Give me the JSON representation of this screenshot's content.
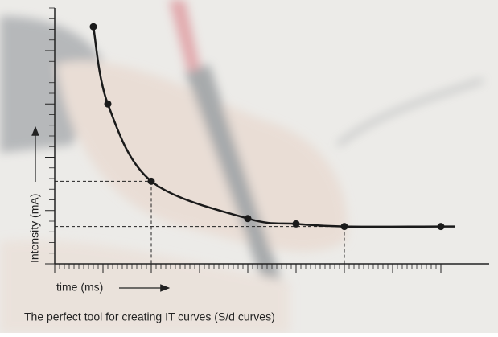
{
  "chart_data": {
    "type": "line",
    "caption": "The perfect tool for creating IT curves (S/d curves)",
    "xlabel": "time (ms)",
    "ylabel": "Intensity (mA)",
    "series": [
      {
        "color": "#1a1a1a",
        "x": [
          8,
          11,
          20,
          40,
          50,
          60,
          80
        ],
        "values": [
          44.5,
          30,
          15.5,
          8.5,
          7.5,
          7,
          7
        ]
      }
    ],
    "xlim": [
      0,
      90
    ],
    "ylim": [
      0,
      48
    ],
    "xticks": [
      0,
      10,
      20,
      30,
      40,
      50,
      60,
      70,
      80
    ],
    "x_minor_per_major": 10,
    "yticks": [
      0,
      10,
      20,
      30,
      40
    ],
    "y_minor_per_major": 5,
    "guides": [
      2,
      5
    ],
    "curve_end_x": 83
  }
}
